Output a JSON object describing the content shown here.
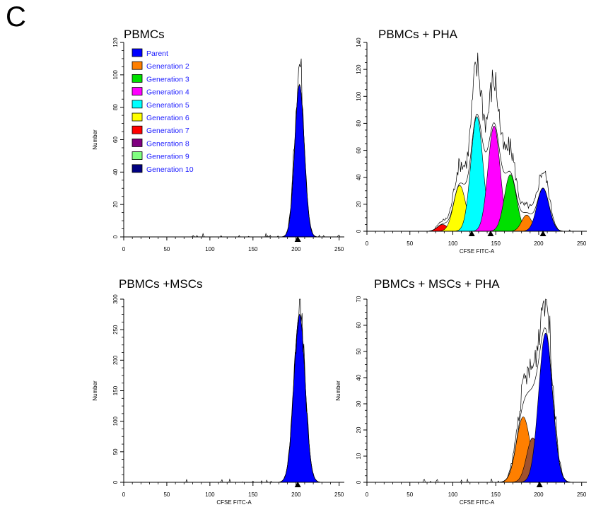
{
  "panel_letter": "C",
  "chart_data": [
    {
      "type": "area",
      "title": "PBMCs",
      "xlabel": "",
      "ylabel": "Number",
      "xlim": [
        0,
        256
      ],
      "ylim": [
        0,
        120
      ],
      "xticks": [
        0,
        50,
        100,
        150,
        200,
        250
      ],
      "yticks": [
        0,
        20,
        40,
        60,
        80,
        100,
        120
      ],
      "legend": {
        "position": "top-left",
        "entries": [
          {
            "name": "Parent",
            "color": "#0000ff"
          },
          {
            "name": "Generation 2",
            "color": "#ff7f00"
          },
          {
            "name": "Generation 3",
            "color": "#00e000"
          },
          {
            "name": "Generation 4",
            "color": "#ff00ff"
          },
          {
            "name": "Generation 5",
            "color": "#00ffff"
          },
          {
            "name": "Generation 6",
            "color": "#ffff00"
          },
          {
            "name": "Generation 7",
            "color": "#ff0000"
          },
          {
            "name": "Generation 8",
            "color": "#800080"
          },
          {
            "name": "Generation 9",
            "color": "#80ff80"
          },
          {
            "name": "Generation 10",
            "color": "#000080"
          }
        ]
      },
      "series": [
        {
          "name": "Parent",
          "color": "#0000ff",
          "peak_x": 204,
          "peak_y": 94,
          "sd": 5.5
        }
      ],
      "markers_x": [
        202
      ],
      "raw_histogram_peak": 108
    },
    {
      "type": "area",
      "title": "PBMCs + PHA",
      "xlabel": "CFSE FITC-A",
      "ylabel": "",
      "xlim": [
        0,
        256
      ],
      "ylim": [
        0,
        140
      ],
      "xticks": [
        0,
        50,
        100,
        150,
        200,
        250
      ],
      "yticks": [
        0,
        20,
        40,
        60,
        80,
        100,
        120,
        140
      ],
      "series": [
        {
          "name": "Generation 7",
          "color": "#ff0000",
          "peak_x": 88,
          "peak_y": 5,
          "sd": 6
        },
        {
          "name": "Generation 6",
          "color": "#ffff00",
          "peak_x": 108,
          "peak_y": 34,
          "sd": 7
        },
        {
          "name": "Generation 5",
          "color": "#00ffff",
          "peak_x": 128,
          "peak_y": 85,
          "sd": 7
        },
        {
          "name": "Generation 4",
          "color": "#ff00ff",
          "peak_x": 148,
          "peak_y": 78,
          "sd": 7
        },
        {
          "name": "Generation 3",
          "color": "#00e000",
          "peak_x": 167,
          "peak_y": 42,
          "sd": 7
        },
        {
          "name": "Generation 2",
          "color": "#ff7f00",
          "peak_x": 186,
          "peak_y": 12,
          "sd": 6
        },
        {
          "name": "Parent",
          "color": "#0000ff",
          "peak_x": 205,
          "peak_y": 32,
          "sd": 7
        }
      ],
      "markers_x": [
        122,
        144,
        205
      ],
      "raw_histogram_peak": 122
    },
    {
      "type": "area",
      "title": "PBMCs +MSCs",
      "xlabel": "CFSE FITC-A",
      "ylabel": "Number",
      "xlim": [
        0,
        256
      ],
      "ylim": [
        0,
        300
      ],
      "xticks": [
        0,
        50,
        100,
        150,
        200,
        250
      ],
      "yticks": [
        0,
        50,
        100,
        150,
        200,
        250,
        300
      ],
      "series": [
        {
          "name": "Parent",
          "color": "#0000ff",
          "peak_x": 204,
          "peak_y": 275,
          "sd": 6.5
        }
      ],
      "markers_x": [
        202
      ],
      "raw_histogram_peak": 276
    },
    {
      "type": "area",
      "title": "PBMCs + MSCs + PHA",
      "xlabel": "CFSE FITC-A",
      "ylabel": "Number",
      "xlim": [
        0,
        256
      ],
      "ylim": [
        0,
        70
      ],
      "xticks": [
        0,
        50,
        100,
        150,
        200,
        250
      ],
      "yticks": [
        0,
        10,
        20,
        30,
        40,
        50,
        60,
        70
      ],
      "series": [
        {
          "name": "Generation 2",
          "color": "#ff7f00",
          "peak_x": 182,
          "peak_y": 25,
          "sd": 8
        },
        {
          "name": "Generation 8",
          "color": "#a0522d",
          "peak_x": 193,
          "peak_y": 17,
          "sd": 7
        },
        {
          "name": "Parent",
          "color": "#0000ff",
          "peak_x": 208,
          "peak_y": 57,
          "sd": 8
        }
      ],
      "markers_x": [
        201
      ],
      "raw_histogram_peak": 70
    }
  ]
}
